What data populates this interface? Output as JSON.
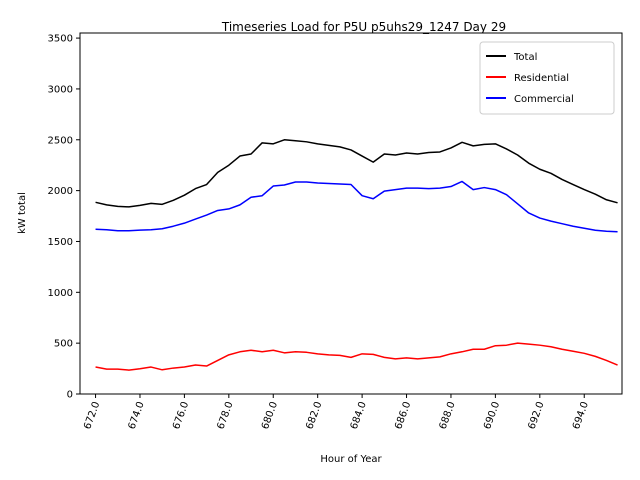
{
  "chart_data": {
    "type": "line",
    "title": "Timeseries Load for P5U p5uhs29_1247  Day 29",
    "xlabel": "Hour of Year",
    "ylabel": "kW total",
    "xlim": [
      671.3,
      695.7
    ],
    "ylim": [
      0,
      3550
    ],
    "x_ticks": [
      672,
      674,
      676,
      678,
      680,
      682,
      684,
      686,
      688,
      690,
      692,
      694
    ],
    "x_tick_labels": [
      "672.0",
      "674.0",
      "676.0",
      "678.0",
      "680.0",
      "682.0",
      "684.0",
      "686.0",
      "688.0",
      "690.0",
      "692.0",
      "694.0"
    ],
    "y_ticks": [
      0,
      500,
      1000,
      1500,
      2000,
      2500,
      3000,
      3500
    ],
    "y_tick_labels": [
      "0",
      "500",
      "1000",
      "1500",
      "2000",
      "2500",
      "3000",
      "3500"
    ],
    "grid": false,
    "legend_position": "top-right",
    "x": [
      672.0,
      672.5,
      673.0,
      673.5,
      674.0,
      674.5,
      675.0,
      675.5,
      676.0,
      676.5,
      677.0,
      677.5,
      678.0,
      678.5,
      679.0,
      679.5,
      680.0,
      680.5,
      681.0,
      681.5,
      682.0,
      682.5,
      683.0,
      683.5,
      684.0,
      684.5,
      685.0,
      685.5,
      686.0,
      686.5,
      687.0,
      687.5,
      688.0,
      688.5,
      689.0,
      689.5,
      690.0,
      690.5,
      691.0,
      691.5,
      692.0,
      692.5,
      693.0,
      693.5,
      694.0,
      694.5,
      695.0,
      695.5
    ],
    "series": [
      {
        "name": "Total",
        "color": "#000000",
        "values": [
          1885,
          1860,
          1845,
          1840,
          1855,
          1875,
          1865,
          1905,
          1955,
          2020,
          2060,
          2180,
          2250,
          2340,
          2360,
          2470,
          2460,
          2500,
          2490,
          2480,
          2460,
          2445,
          2430,
          2400,
          2340,
          2280,
          2360,
          2350,
          2370,
          2360,
          2375,
          2380,
          2420,
          2475,
          2440,
          2455,
          2460,
          2410,
          2350,
          2270,
          2210,
          2170,
          2110,
          2060,
          2010,
          1965,
          1910,
          1880
        ]
      },
      {
        "name": "Residential",
        "color": "#ff0000",
        "values": [
          265,
          245,
          245,
          235,
          248,
          265,
          238,
          255,
          265,
          285,
          275,
          330,
          385,
          415,
          430,
          415,
          430,
          405,
          415,
          410,
          395,
          385,
          380,
          360,
          395,
          390,
          360,
          345,
          355,
          345,
          355,
          365,
          395,
          415,
          440,
          440,
          475,
          480,
          500,
          490,
          480,
          465,
          440,
          420,
          400,
          370,
          330,
          285
        ]
      },
      {
        "name": "Commercial",
        "color": "#0000ff",
        "values": [
          1620,
          1615,
          1605,
          1605,
          1612,
          1615,
          1625,
          1650,
          1680,
          1720,
          1760,
          1805,
          1820,
          1860,
          1935,
          1950,
          2045,
          2055,
          2085,
          2085,
          2075,
          2070,
          2065,
          2060,
          1950,
          1920,
          1995,
          2010,
          2025,
          2025,
          2020,
          2025,
          2040,
          2090,
          2010,
          2030,
          2010,
          1960,
          1870,
          1780,
          1730,
          1700,
          1675,
          1650,
          1630,
          1610,
          1600,
          1595
        ]
      }
    ]
  }
}
